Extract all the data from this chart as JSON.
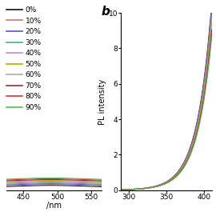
{
  "legend_labels": [
    "0%",
    "10%",
    "20%",
    "30%",
    "40%",
    "50%",
    "60%",
    "70%",
    "80%",
    "90%"
  ],
  "legend_colors": [
    "#111111",
    "#cc7777",
    "#5555cc",
    "#44aaaa",
    "#cc88cc",
    "#aaaa00",
    "#aaaaaa",
    "#883333",
    "#dd3333",
    "#55bb55"
  ],
  "panel_b_label": "b",
  "ylabel_b": "PL intensity",
  "ylim_b": [
    0,
    10
  ],
  "yticks_b": [
    0,
    2,
    4,
    6,
    8,
    10
  ],
  "xlim_b": [
    290,
    410
  ],
  "xticks_b": [
    300,
    350,
    400
  ],
  "xlabel_a_unit": "/nm",
  "xlim_a": [
    425,
    565
  ],
  "xticks_a": [
    450,
    500,
    550
  ],
  "background_color": "#ffffff"
}
